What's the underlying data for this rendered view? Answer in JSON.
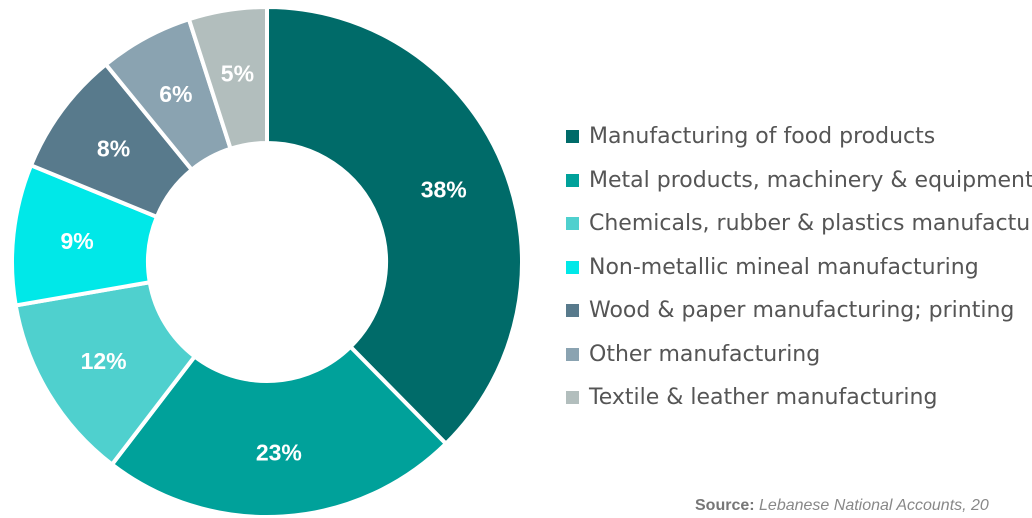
{
  "chart_data": {
    "type": "pie",
    "donut": true,
    "categories": [
      "Manufacturing of food products",
      "Metal products, machinery & equipment",
      "Chemicals, rubber & plastics manufacturing",
      "Non-metallic mineal manufacturing",
      "Wood & paper manufacturing; printing",
      "Other manufacturing",
      "Textile & leather manufacturing"
    ],
    "values": [
      38,
      23,
      12,
      9,
      8,
      6,
      5
    ],
    "labels": [
      "38%",
      "23%",
      "12%",
      "9%",
      "8%",
      "6%",
      "5%"
    ],
    "colors": [
      "#006b69",
      "#00a19a",
      "#4fd0ce",
      "#00e8e8",
      "#587a8c",
      "#8aa3b1",
      "#b2bebd"
    ],
    "legend_position": "right",
    "start_angle": "top",
    "direction": "clockwise"
  },
  "source": {
    "label": "Source:",
    "text": "Lebanese National Accounts, 20"
  }
}
